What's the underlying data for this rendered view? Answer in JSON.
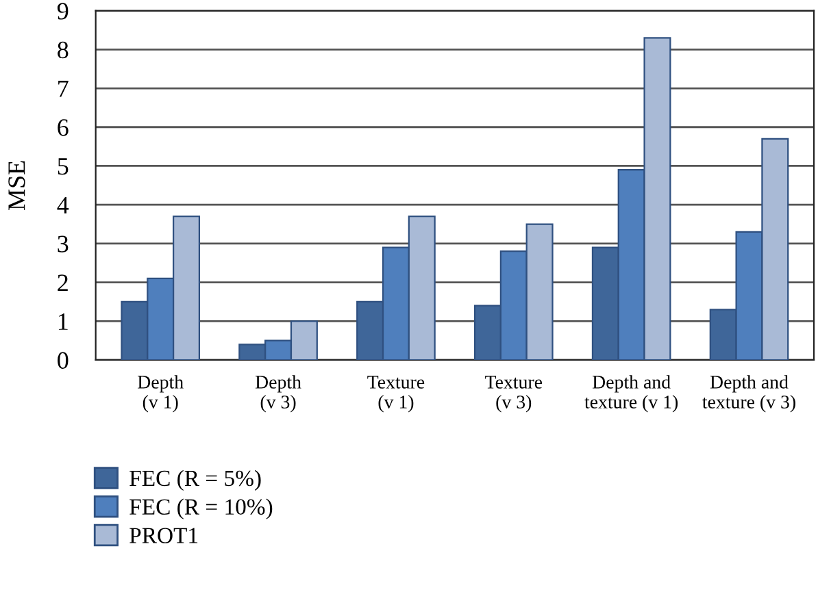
{
  "chart_data": {
    "type": "bar",
    "ylabel": "MSE",
    "categories": [
      "Depth\n(v 1)",
      "Depth\n(v 3)",
      "Texture\n(v 1)",
      "Texture\n(v 3)",
      "Depth and\ntexture (v 1)",
      "Depth and\ntexture (v 3)"
    ],
    "series": [
      {
        "name": "FEC (R = 5%)",
        "color": "#3f6699",
        "values": [
          1.5,
          0.4,
          1.5,
          1.4,
          2.9,
          1.3
        ]
      },
      {
        "name": "FEC (R = 10%)",
        "color": "#4f7fbd",
        "values": [
          2.1,
          0.5,
          2.9,
          2.8,
          4.9,
          3.3
        ]
      },
      {
        "name": "PROT1",
        "color": "#a9bad6",
        "values": [
          3.7,
          1.0,
          3.7,
          3.5,
          8.3,
          5.7
        ]
      }
    ],
    "ylim": [
      0,
      9
    ],
    "yticks": [
      0,
      1,
      2,
      3,
      4,
      5,
      6,
      7,
      8,
      9
    ],
    "grid": "y",
    "legend": "bottom left"
  }
}
